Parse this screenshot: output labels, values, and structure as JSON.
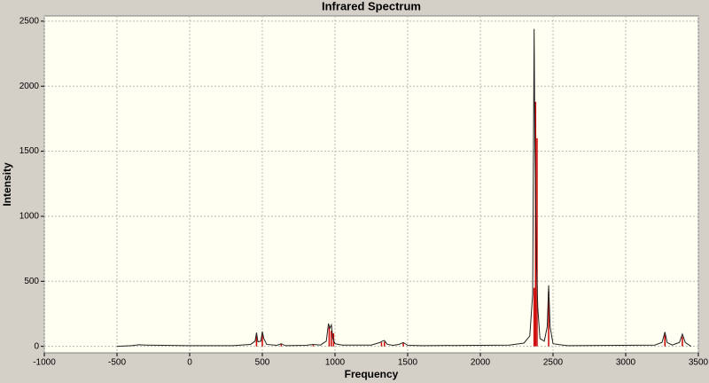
{
  "chart_data": {
    "type": "spectrum",
    "title": "Infrared Spectrum",
    "x_label": "Frequency",
    "y_label": "Intensity",
    "xlim": [
      -1000,
      3500
    ],
    "ylim": [
      -50,
      2540
    ],
    "xticks": [
      -1000,
      -500,
      0,
      500,
      1000,
      1500,
      2000,
      2500,
      3000,
      3500
    ],
    "yticks": [
      0,
      500,
      1000,
      1500,
      2000,
      2500
    ],
    "grid": true,
    "series": [
      {
        "kind": "line",
        "color": "#222222",
        "x": [
          -500,
          -400,
          -350,
          -300,
          0,
          300,
          350,
          420,
          450,
          460,
          470,
          490,
          500,
          510,
          530,
          600,
          630,
          660,
          800,
          850,
          900,
          940,
          955,
          965,
          975,
          985,
          1000,
          1050,
          1250,
          1310,
          1325,
          1340,
          1360,
          1400,
          1440,
          1470,
          1500,
          1600,
          2200,
          2300,
          2340,
          2360,
          2370,
          2375,
          2385,
          2395,
          2410,
          2440,
          2460,
          2470,
          2480,
          2500,
          2600,
          3200,
          3250,
          3270,
          3285,
          3320,
          3370,
          3390,
          3410,
          3450
        ],
        "values": [
          0,
          5,
          12,
          10,
          5,
          5,
          10,
          15,
          40,
          105,
          35,
          40,
          115,
          60,
          15,
          8,
          20,
          5,
          8,
          15,
          10,
          40,
          175,
          140,
          165,
          60,
          20,
          10,
          10,
          30,
          40,
          45,
          15,
          8,
          15,
          30,
          8,
          5,
          10,
          25,
          80,
          400,
          2440,
          1600,
          700,
          300,
          60,
          40,
          150,
          470,
          150,
          20,
          5,
          10,
          30,
          110,
          30,
          10,
          30,
          95,
          30,
          0
        ]
      },
      {
        "kind": "sticks",
        "color": "#cc0000",
        "x": [
          460,
          500,
          630,
          850,
          960,
          975,
          990,
          1320,
          1340,
          1470,
          2370,
          2380,
          2390,
          2470,
          3270,
          3390
        ],
        "values": [
          80,
          90,
          15,
          10,
          150,
          120,
          100,
          30,
          35,
          25,
          450,
          1880,
          1600,
          420,
          90,
          75
        ]
      }
    ]
  }
}
